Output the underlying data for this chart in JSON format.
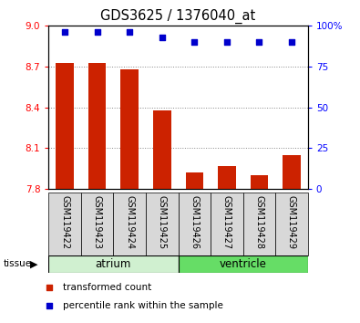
{
  "title": "GDS3625 / 1376040_at",
  "samples": [
    "GSM119422",
    "GSM119423",
    "GSM119424",
    "GSM119425",
    "GSM119426",
    "GSM119427",
    "GSM119428",
    "GSM119429"
  ],
  "transformed_count": [
    8.73,
    8.73,
    8.68,
    8.38,
    7.92,
    7.97,
    7.9,
    8.05
  ],
  "percentile_rank": [
    96,
    96,
    96,
    93,
    90,
    90,
    90,
    90
  ],
  "ylim_left": [
    7.8,
    9.0
  ],
  "ylim_right": [
    0,
    100
  ],
  "yticks_left": [
    7.8,
    8.1,
    8.4,
    8.7,
    9.0
  ],
  "yticks_right": [
    0,
    25,
    50,
    75,
    100
  ],
  "groups": [
    {
      "label": "atrium",
      "indices": [
        0,
        1,
        2,
        3
      ],
      "color": "#d0f0d0"
    },
    {
      "label": "ventricle",
      "indices": [
        4,
        5,
        6,
        7
      ],
      "color": "#66dd66"
    }
  ],
  "bar_color": "#cc2200",
  "dot_color": "#0000cc",
  "bar_width": 0.55,
  "sample_box_color": "#d8d8d8",
  "legend_items": [
    {
      "label": "transformed count",
      "color": "#cc2200"
    },
    {
      "label": "percentile rank within the sample",
      "color": "#0000cc"
    }
  ],
  "tissue_label": "tissue"
}
